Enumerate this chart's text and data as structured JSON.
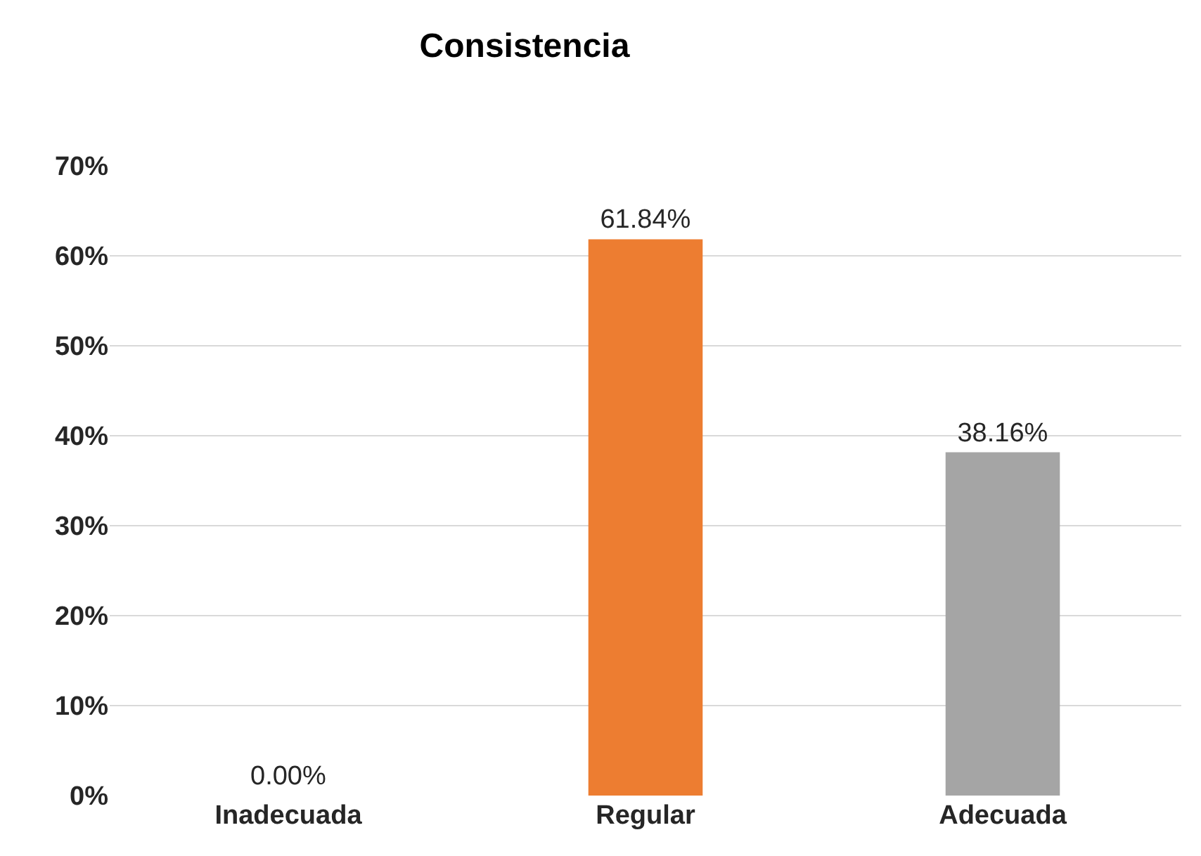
{
  "chart_data": {
    "type": "bar",
    "title": "Consistencia",
    "categories": [
      "Inadecuada",
      "Regular",
      "Adecuada"
    ],
    "values": [
      0,
      61.84,
      38.16
    ],
    "colors": [
      "#4472c4",
      "#ed7d31",
      "#a5a5a5"
    ],
    "value_labels": [
      "0.00%",
      "61.84%",
      "38.16%"
    ],
    "ylim": [
      0,
      70
    ],
    "yticks": [
      {
        "value": 0,
        "label": "0%"
      },
      {
        "value": 10,
        "label": "10%"
      },
      {
        "value": 20,
        "label": "20%"
      },
      {
        "value": 30,
        "label": "30%"
      },
      {
        "value": 40,
        "label": "40%"
      },
      {
        "value": 50,
        "label": "50%"
      },
      {
        "value": 60,
        "label": "60%"
      },
      {
        "value": 70,
        "label": "70%"
      }
    ],
    "grid": "y",
    "legend": false
  }
}
